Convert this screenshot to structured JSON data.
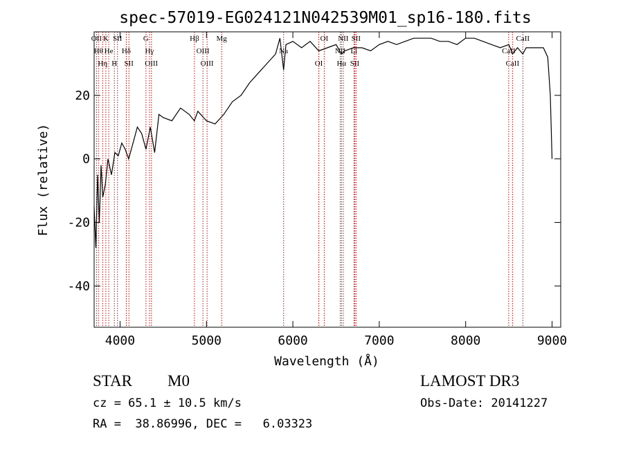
{
  "chart_data": {
    "type": "line",
    "title": "spec-57019-EG024121N042539M01_sp16-180.fits",
    "xlabel": "Wavelength (Å)",
    "ylabel": "Flux (relative)",
    "xlim": [
      3700,
      9100
    ],
    "ylim": [
      -53,
      40
    ],
    "x_ticks": [
      4000,
      5000,
      6000,
      7000,
      8000,
      9000
    ],
    "y_ticks": [
      -40,
      -20,
      0,
      20
    ],
    "grid": false,
    "line_color": "#000000",
    "marker_color": "#cc0000",
    "series": [
      {
        "x": [
          3700,
          3720,
          3740,
          3760,
          3780,
          3800,
          3830,
          3860,
          3900,
          3940,
          3980,
          4020,
          4060,
          4100,
          4150,
          4200,
          4250,
          4300,
          4350,
          4400,
          4450,
          4500,
          4600,
          4700,
          4800,
          4860,
          4900,
          5000,
          5100,
          5200,
          5300,
          5400,
          5500,
          5600,
          5700,
          5800,
          5850,
          5893,
          5920,
          6000,
          6100,
          6200,
          6300,
          6400,
          6500,
          6563,
          6600,
          6700,
          6800,
          6900,
          7000,
          7100,
          7200,
          7300,
          7400,
          7500,
          7600,
          7700,
          7800,
          7900,
          8000,
          8100,
          8200,
          8300,
          8400,
          8500,
          8542,
          8600,
          8662,
          8700,
          8800,
          8900,
          8950,
          8980,
          9000
        ],
        "y": [
          -15,
          -28,
          -5,
          -20,
          -2,
          -12,
          -8,
          0,
          -5,
          2,
          1,
          5,
          3,
          0,
          5,
          10,
          8,
          3,
          10,
          2,
          14,
          13,
          12,
          16,
          14,
          12,
          15,
          12,
          11,
          14,
          18,
          20,
          24,
          27,
          30,
          33,
          38,
          28,
          36,
          37,
          35,
          37,
          34,
          35,
          36,
          33,
          34,
          35,
          35,
          34,
          36,
          37,
          36,
          37,
          38,
          38,
          38,
          37,
          37,
          36,
          38,
          38,
          37,
          36,
          35,
          36,
          33,
          35,
          33,
          35,
          35,
          35,
          32,
          20,
          0
        ]
      }
    ],
    "lines": [
      {
        "wl": 3727,
        "label": "OII"
      },
      {
        "wl": 3750,
        "label": "Hθ"
      },
      {
        "wl": 3798,
        "label": "Hη"
      },
      {
        "wl": 3835,
        "label": "K"
      },
      {
        "wl": 3869,
        "label": "He"
      },
      {
        "wl": 3934,
        "label": "H"
      },
      {
        "wl": 3970,
        "label": "SII"
      },
      {
        "wl": 4072,
        "label": "Hδ"
      },
      {
        "wl": 4102,
        "label": "SII"
      },
      {
        "wl": 4300,
        "label": "G"
      },
      {
        "wl": 4340,
        "label": "Hγ"
      },
      {
        "wl": 4363,
        "label": "OIII"
      },
      {
        "wl": 4861,
        "label": "Hβ"
      },
      {
        "wl": 4959,
        "label": "OIII"
      },
      {
        "wl": 5007,
        "label": "OIII"
      },
      {
        "wl": 5175,
        "label": "Mg"
      },
      {
        "wl": 5893,
        "label": "Na"
      },
      {
        "wl": 6300,
        "label": "OI"
      },
      {
        "wl": 6363,
        "label": "OI"
      },
      {
        "wl": 6548,
        "label": "NII"
      },
      {
        "wl": 6563,
        "label": "Hα"
      },
      {
        "wl": 6583,
        "label": "NII"
      },
      {
        "wl": 6707,
        "label": "Li"
      },
      {
        "wl": 6716,
        "label": "SII"
      },
      {
        "wl": 6731,
        "label": "SII"
      },
      {
        "wl": 8498,
        "label": "CaII"
      },
      {
        "wl": 8542,
        "label": "CaII"
      },
      {
        "wl": 8662,
        "label": "CaII"
      }
    ]
  },
  "info": {
    "class": "STAR",
    "subclass": "M0",
    "survey": "LAMOST DR3",
    "cz": "cz = 65.1 ± 10.5 km/s",
    "obs_date": "Obs-Date: 20141227",
    "radec": "RA =  38.86996, DEC =   6.03323"
  }
}
